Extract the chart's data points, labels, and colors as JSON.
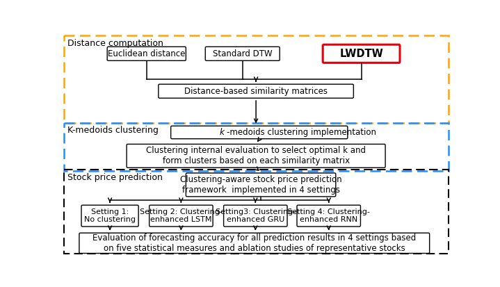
{
  "section_labels": [
    "Distance computation",
    "K-medoids clustering",
    "Stock price prediction"
  ],
  "orange_color": "#FFA500",
  "blue_color": "#1E90FF",
  "black_color": "#000000",
  "red_color": "#E8000B",
  "white": "#FFFFFF",
  "gray_arrow": "#555555",
  "box_texts": {
    "euclidean": "Euclidean distance",
    "dtw": "Standard DTW",
    "lwdtw": "LWDTW",
    "similarity": "Distance-based similarity matrices",
    "kmedoids_impl": "-medoids clustering implementation",
    "clustering_eval": "Clustering internal evaluation to select optimal k and\nform clusters based on each similarity matrix",
    "framework": "Clustering-aware stock price prediction\nframework  implemented in 4 settings",
    "setting1": "Setting 1:\nNo clustering",
    "setting2": "Setting 2: Clustering-\nenhanced LSTM",
    "setting3": "Setting3: Clustering-\nenhanced GRU",
    "setting4": "Setting 4: Clustering-\nenhanced RNN",
    "evaluation": "Evaluation of forecasting accuracy for all prediction results in 4 settings based\non five statistical measures and ablation studies of representative stocks"
  }
}
